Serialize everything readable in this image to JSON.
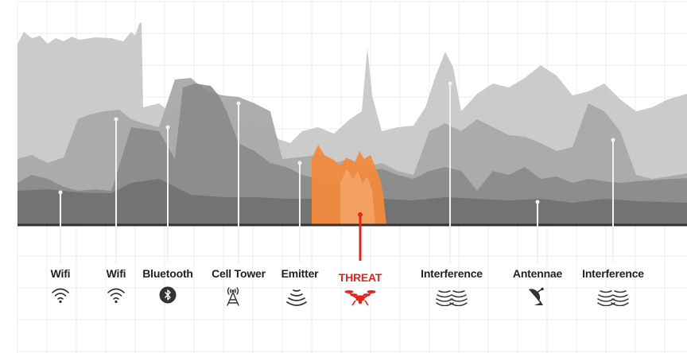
{
  "colors": {
    "background": "#ffffff",
    "grid": "#ececec",
    "layer_light": "#c8c8c8",
    "layer_mid": "#a9a9a9",
    "layer_dark": "#8a8a8a",
    "layer_darkest": "#6f6f6f",
    "baseline": "#333333",
    "stem": "#f2f2f2",
    "threat_fill": "#f08a3c",
    "threat_accent": "#e8231b",
    "label": "#222222",
    "icon": "#333333"
  },
  "signals": [
    {
      "label": "Wifi",
      "icon": "wifi-icon",
      "threat": false
    },
    {
      "label": "Wifi",
      "icon": "wifi-icon",
      "threat": false
    },
    {
      "label": "Bluetooth",
      "icon": "bluetooth-icon",
      "threat": false
    },
    {
      "label": "Cell Tower",
      "icon": "cell-tower-icon",
      "threat": false
    },
    {
      "label": "Emitter",
      "icon": "emitter-icon",
      "threat": false
    },
    {
      "label": "THREAT",
      "icon": "drone-icon",
      "threat": true
    },
    {
      "label": "Interference",
      "icon": "interference-icon",
      "threat": false
    },
    {
      "label": "Antennae",
      "icon": "satellite-dish-icon",
      "threat": false
    },
    {
      "label": "Interference",
      "icon": "interference-icon",
      "threat": false
    }
  ]
}
